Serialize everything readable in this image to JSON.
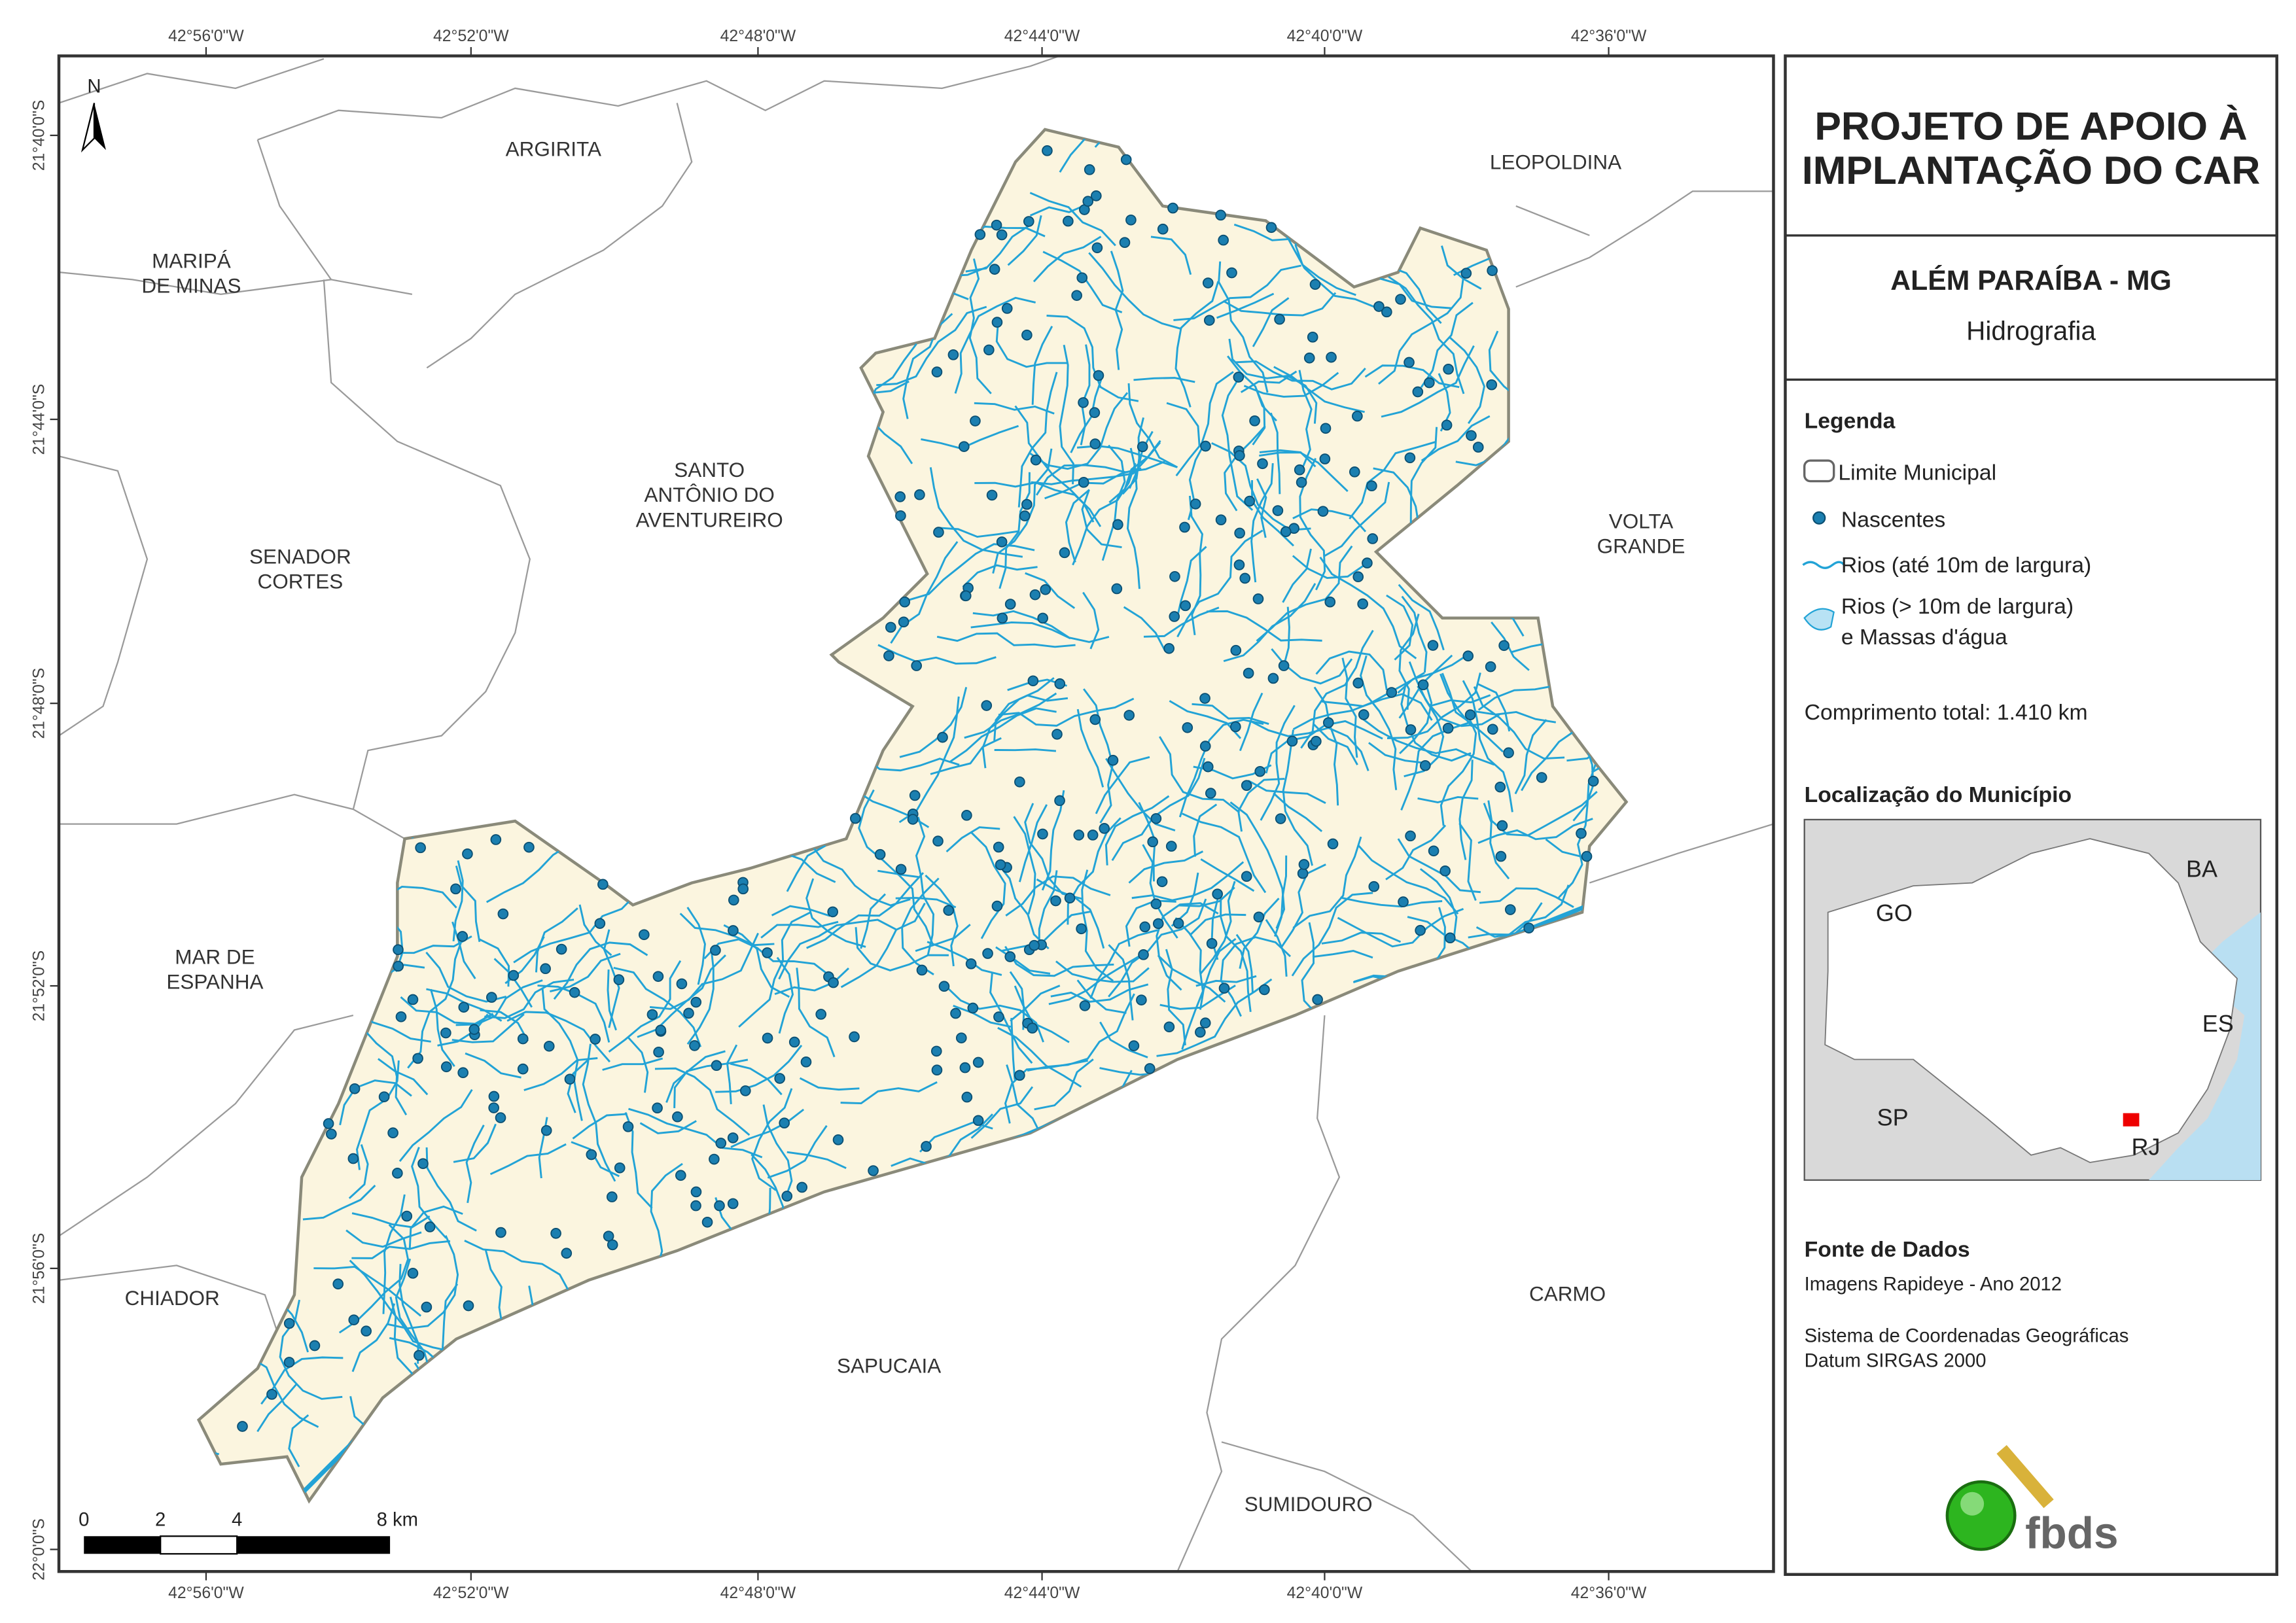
{
  "map": {
    "lon_ticks": [
      "42°56'0\"W",
      "42°52'0\"W",
      "42°48'0\"W",
      "42°44'0\"W",
      "42°40'0\"W",
      "42°36'0\"W"
    ],
    "lat_ticks": [
      "21°40'0\"S",
      "21°44'0\"S",
      "21°48'0\"S",
      "21°52'0\"S",
      "21°56'0\"S",
      "22°0'0\"S"
    ],
    "north": "N",
    "places": [
      {
        "lines": [
          "ARGIRITA"
        ]
      },
      {
        "lines": [
          "LEOPOLDINA"
        ]
      },
      {
        "lines": [
          "MARIPÁ",
          "DE MINAS"
        ]
      },
      {
        "lines": [
          "SANTO",
          "ANTÔNIO DO",
          "AVENTUREIRO"
        ]
      },
      {
        "lines": [
          "VOLTA",
          "GRANDE"
        ]
      },
      {
        "lines": [
          "SENADOR",
          "CORTES"
        ]
      },
      {
        "lines": [
          "MAR DE",
          "ESPANHA"
        ]
      },
      {
        "lines": [
          "CHIADOR"
        ]
      },
      {
        "lines": [
          "SAPUCAIA"
        ]
      },
      {
        "lines": [
          "CARMO"
        ]
      },
      {
        "lines": [
          "SUMIDOURO"
        ]
      }
    ],
    "scale_labels": [
      "0",
      "2",
      "4",
      "8 km"
    ]
  },
  "panel": {
    "title": [
      "PROJETO DE APOIO À",
      "IMPLANTAÇÃO DO CAR"
    ],
    "municipality": "ALÉM PARAÍBA - MG",
    "theme": "Hidrografia",
    "legend": {
      "title": "Legenda",
      "items": [
        "Limite Municipal",
        "Nascentes",
        "Rios (até 10m de largura)",
        "Rios (> 10m de largura)",
        "e Massas d'água"
      ]
    },
    "total_length": "Comprimento total:  1.410 km",
    "location": {
      "title": "Localização do Município",
      "labels": [
        "GO",
        "BA",
        "ES",
        "SP",
        "RJ"
      ]
    },
    "sources": {
      "title": "Fonte de Dados",
      "lines": [
        "Imagens Rapideye - Ano 2012",
        "Sistema de Coordenadas Geográficas",
        "Datum SIRGAS 2000"
      ]
    },
    "logo": "fbds"
  }
}
